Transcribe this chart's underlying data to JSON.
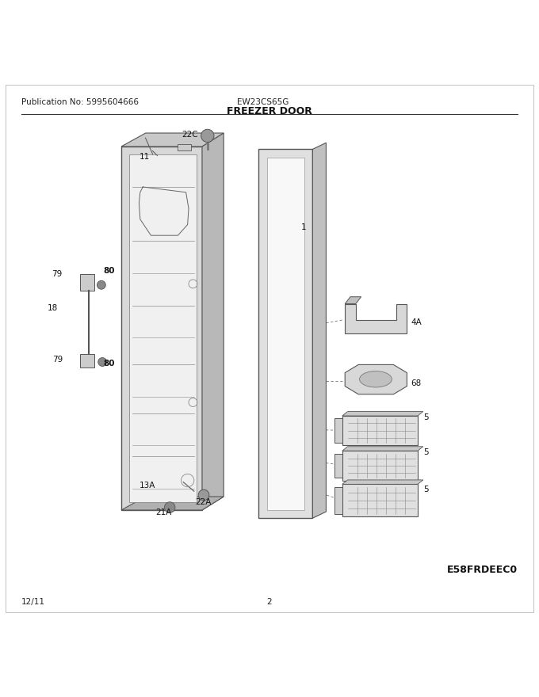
{
  "pub_no": "Publication No: 5995604666",
  "model": "EW23CS65G",
  "title": "FREEZER DOOR",
  "date": "12/11",
  "page": "2",
  "diagram_code": "E58FRDEEC0",
  "bg_color": "#ffffff"
}
